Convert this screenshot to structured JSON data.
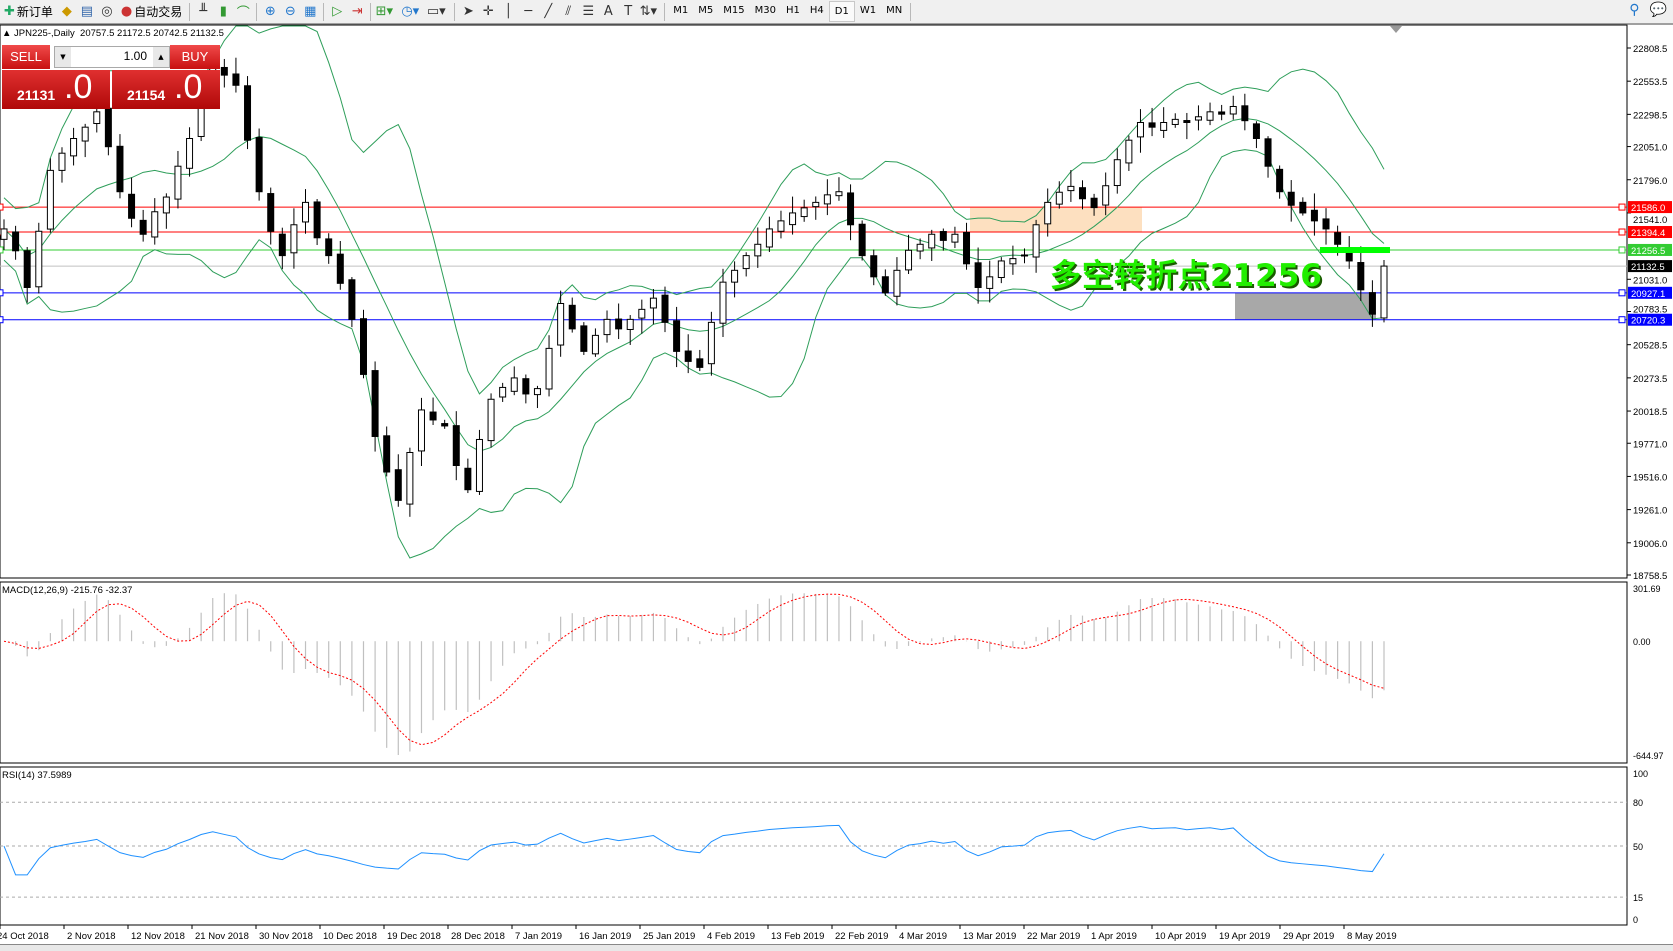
{
  "toolbar": {
    "new_order_label": "新订单",
    "auto_trading_label": "自动交易",
    "timeframes": [
      "M1",
      "M5",
      "M15",
      "M30",
      "H1",
      "H4",
      "D1",
      "W1",
      "MN"
    ],
    "active_timeframe": "D1",
    "icons": [
      "new-order-icon",
      "market-watch-icon",
      "navigator-icon",
      "signals-icon",
      "auto-trading-icon",
      "bar-chart-icon",
      "candlestick-icon",
      "line-chart-icon",
      "zoom-in-icon",
      "zoom-out-icon",
      "tile-windows-icon",
      "autoscroll-icon",
      "chart-shift-icon",
      "indicators-icon",
      "periods-icon",
      "templates-icon",
      "cursor-icon",
      "crosshair-icon",
      "vertical-line-icon",
      "horizontal-line-icon",
      "trendline-icon",
      "equidistant-channel-icon",
      "fibonacci-icon",
      "text-icon",
      "text-label-icon",
      "arrows-icon",
      "search-icon",
      "chat-icon"
    ]
  },
  "chart": {
    "symbol_label": "JPN225-,Daily",
    "ohlc": "20757.5 21172.5 20742.5 21132.5",
    "annotation": "多空转折点21256",
    "annotation_color": "#22ee00"
  },
  "trade_panel": {
    "sell_label": "SELL",
    "buy_label": "BUY",
    "lot": "1.00",
    "sell_price_main": "21131",
    "sell_price_frac": ".0",
    "buy_price_main": "21154",
    "buy_price_frac": ".0"
  },
  "chart_data": [
    {
      "type": "candlestick",
      "ylim": [
        18758.5,
        22808.5
      ],
      "y_ticks": [
        "22808.5",
        "22553.5",
        "22298.5",
        "22051.0",
        "21796.0",
        "21541.0",
        "21031.0",
        "20783.5",
        "20528.5",
        "20273.5",
        "20018.5",
        "19771.0",
        "19516.0",
        "19261.0",
        "19006.0",
        "18758.5"
      ],
      "x_ticks": [
        "24 Oct 2018",
        "2 Nov 2018",
        "12 Nov 2018",
        "21 Nov 2018",
        "30 Nov 2018",
        "10 Dec 2018",
        "19 Dec 2018",
        "28 Dec 2018",
        "7 Jan 2019",
        "16 Jan 2019",
        "25 Jan 2019",
        "4 Feb 2019",
        "13 Feb 2019",
        "22 Feb 2019",
        "4 Mar 2019",
        "13 Mar 2019",
        "22 Mar 2019",
        "1 Apr 2019",
        "10 Apr 2019",
        "19 Apr 2019",
        "29 Apr 2019",
        "8 May 2019"
      ],
      "closes": [
        21418,
        21250,
        20968,
        21400,
        21868,
        22000,
        22113,
        22200,
        22318,
        22050,
        21704,
        21500,
        21377,
        21550,
        21663,
        21900,
        22113,
        22450,
        22686,
        22600,
        22522,
        22100,
        21704,
        21400,
        21213,
        21450,
        21622,
        21350,
        21213,
        21000,
        20723,
        20300,
        19823,
        19550,
        19332,
        19700,
        20027,
        19950,
        19904,
        19600,
        19414,
        19800,
        20109,
        20200,
        20273,
        20150,
        20191,
        20500,
        20845,
        20650,
        20477,
        20600,
        20723,
        20650,
        20723,
        20800,
        20886,
        20700,
        20477,
        20400,
        20354,
        20700,
        21009,
        21100,
        21213,
        21300,
        21418,
        21480,
        21541,
        21580,
        21622,
        21680,
        21704,
        21450,
        21213,
        21050,
        20927,
        21100,
        21254,
        21300,
        21377,
        21330,
        21377,
        21150,
        20968,
        21050,
        21172,
        21190,
        21213,
        21450,
        21622,
        21700,
        21745,
        21650,
        21582,
        21750,
        21950,
        22100,
        22236,
        22200,
        22236,
        22260,
        22236,
        22280,
        22318,
        22300,
        22359,
        22250,
        22113,
        21900,
        21704,
        21600,
        21541,
        21480,
        21418,
        21300,
        21172,
        20950,
        20763,
        21132.5
      ],
      "indicator_overlay": "Bollinger Bands",
      "band_color": "#2e9e5a",
      "horizontal_lines": [
        {
          "price": "21586.0",
          "color": "#ff0000"
        },
        {
          "price": "21394.4",
          "color": "#ff0000"
        },
        {
          "price": "21256.5",
          "color": "#33cc33"
        },
        {
          "price": "21132.5",
          "color": "#000000"
        },
        {
          "price": "20927.1",
          "color": "#0000ff"
        },
        {
          "price": "20720.3",
          "color": "#0000ff"
        }
      ],
      "zones": [
        {
          "from": 21394.4,
          "to": 21586.0,
          "color": "#fde0c0",
          "from_date": "13 Mar 2019",
          "to_date": "10 Apr 2019"
        },
        {
          "from": 20720.3,
          "to": 20927.1,
          "color": "#a8a8a8",
          "from_date": "29 Apr 2019",
          "to_date": "8 May 2019"
        }
      ],
      "marker": {
        "price": 21256,
        "color": "#00ff00"
      }
    },
    {
      "type": "bar",
      "title": "MACD(12,26,9) -215.76 -32.37",
      "ylim": [
        -644.97,
        301.69
      ],
      "y_ticks": [
        "301.69",
        "0.00",
        "-644.97"
      ],
      "histogram_color": "#c0c0c0",
      "signal_color": "#ff0000"
    },
    {
      "type": "line",
      "title": "RSI(14) 37.5989",
      "ylim": [
        0,
        100
      ],
      "y_ticks": [
        "100",
        "80",
        "50",
        "15",
        "0"
      ],
      "levels": [
        80,
        50,
        15
      ],
      "line_color": "#1e90ff"
    }
  ]
}
